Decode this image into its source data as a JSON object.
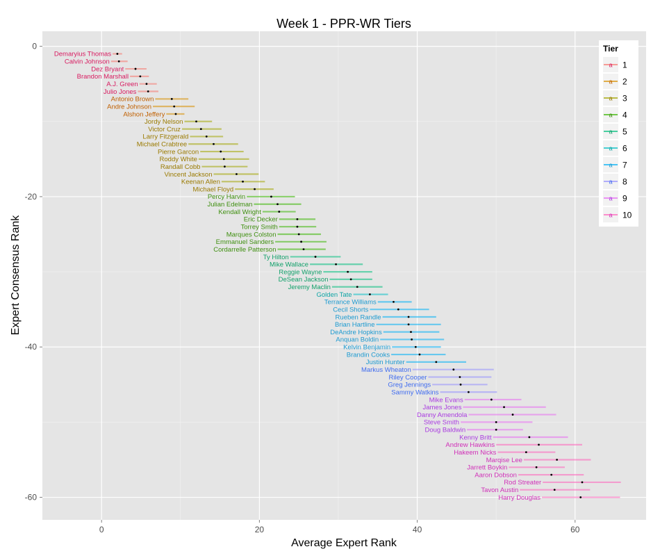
{
  "chart_data": {
    "type": "scatter",
    "title": "Week 1 - PPR-WR Tiers",
    "xlabel": "Average Expert Rank",
    "ylabel": "Expert Consensus Rank",
    "xlim": [
      -7.5,
      69
    ],
    "ylim": [
      -63,
      2
    ],
    "x_ticks": [
      0,
      20,
      40,
      60
    ],
    "x_tick_labels": [
      "0",
      "20",
      "40",
      "60"
    ],
    "y_ticks": [
      0,
      -20,
      -40,
      -60
    ],
    "y_tick_labels": [
      "0",
      "-20",
      "-40",
      "-60"
    ],
    "grid": true,
    "legend": {
      "title": "Tier",
      "position": "top-right",
      "key_glyph": "a",
      "entries": [
        "1",
        "2",
        "3",
        "4",
        "5",
        "6",
        "7",
        "8",
        "9",
        "10"
      ]
    },
    "tier_colors": [
      "#F8766D",
      "#D89000",
      "#A3A500",
      "#39B600",
      "#00BF7D",
      "#00BFC4",
      "#00B0F6",
      "#9590FF",
      "#E76BF3",
      "#FF62BC"
    ],
    "label_colors": [
      "#D81B60",
      "#C06000",
      "#9A7A00",
      "#3F8F10",
      "#11A06A",
      "#0FA5A5",
      "#1D9AD0",
      "#3F6BEF",
      "#A93BE0",
      "#D030B8"
    ],
    "points": [
      {
        "name": "Demaryius Thomas",
        "rank": -1,
        "tier": 1,
        "avg": 2.0,
        "lo": 1.4,
        "hi": 2.6
      },
      {
        "name": "Calvin Johnson",
        "rank": -2,
        "tier": 1,
        "avg": 2.2,
        "lo": 1.2,
        "hi": 3.3
      },
      {
        "name": "Dez Bryant",
        "rank": -3,
        "tier": 1,
        "avg": 4.3,
        "lo": 3.0,
        "hi": 5.7
      },
      {
        "name": "Brandon Marshall",
        "rank": -4,
        "tier": 1,
        "avg": 4.9,
        "lo": 3.6,
        "hi": 6.0
      },
      {
        "name": "A.J. Green",
        "rank": -5,
        "tier": 1,
        "avg": 5.7,
        "lo": 4.8,
        "hi": 7.0
      },
      {
        "name": "Julio Jones",
        "rank": -6,
        "tier": 1,
        "avg": 5.9,
        "lo": 4.6,
        "hi": 7.2
      },
      {
        "name": "Antonio Brown",
        "rank": -7,
        "tier": 2,
        "avg": 8.9,
        "lo": 6.8,
        "hi": 11.0
      },
      {
        "name": "Andre Johnson",
        "rank": -8,
        "tier": 2,
        "avg": 9.2,
        "lo": 6.5,
        "hi": 11.8
      },
      {
        "name": "Alshon Jeffery",
        "rank": -9,
        "tier": 2,
        "avg": 9.4,
        "lo": 8.2,
        "hi": 10.5
      },
      {
        "name": "Jordy Nelson",
        "rank": -10,
        "tier": 3,
        "avg": 12.0,
        "lo": 10.5,
        "hi": 14.0
      },
      {
        "name": "Victor Cruz",
        "rank": -11,
        "tier": 3,
        "avg": 12.6,
        "lo": 10.2,
        "hi": 15.2
      },
      {
        "name": "Larry Fitzgerald",
        "rank": -12,
        "tier": 3,
        "avg": 13.3,
        "lo": 11.2,
        "hi": 15.4
      },
      {
        "name": "Michael Crabtree",
        "rank": -13,
        "tier": 3,
        "avg": 14.2,
        "lo": 11.0,
        "hi": 17.3
      },
      {
        "name": "Pierre Garcon",
        "rank": -14,
        "tier": 3,
        "avg": 15.1,
        "lo": 12.5,
        "hi": 18.0
      },
      {
        "name": "Roddy White",
        "rank": -15,
        "tier": 3,
        "avg": 15.5,
        "lo": 12.3,
        "hi": 18.7
      },
      {
        "name": "Randall Cobb",
        "rank": -16,
        "tier": 3,
        "avg": 15.6,
        "lo": 12.7,
        "hi": 18.5
      },
      {
        "name": "Vincent Jackson",
        "rank": -17,
        "tier": 3,
        "avg": 17.1,
        "lo": 14.2,
        "hi": 19.9
      },
      {
        "name": "Keenan Allen",
        "rank": -18,
        "tier": 3,
        "avg": 17.9,
        "lo": 15.2,
        "hi": 20.7
      },
      {
        "name": "Michael Floyd",
        "rank": -19,
        "tier": 3,
        "avg": 19.4,
        "lo": 16.9,
        "hi": 21.8
      },
      {
        "name": "Percy Harvin",
        "rank": -20,
        "tier": 4,
        "avg": 21.5,
        "lo": 18.4,
        "hi": 24.5
      },
      {
        "name": "Julian Edelman",
        "rank": -21,
        "tier": 4,
        "avg": 22.3,
        "lo": 19.3,
        "hi": 25.3
      },
      {
        "name": "Kendall Wright",
        "rank": -22,
        "tier": 4,
        "avg": 22.5,
        "lo": 20.4,
        "hi": 24.6
      },
      {
        "name": "Eric Decker",
        "rank": -23,
        "tier": 4,
        "avg": 24.8,
        "lo": 22.5,
        "hi": 27.1
      },
      {
        "name": "Torrey Smith",
        "rank": -24,
        "tier": 4,
        "avg": 24.8,
        "lo": 22.5,
        "hi": 27.2
      },
      {
        "name": "Marques Colston",
        "rank": -25,
        "tier": 4,
        "avg": 25.0,
        "lo": 22.3,
        "hi": 27.8
      },
      {
        "name": "Emmanuel Sanders",
        "rank": -26,
        "tier": 4,
        "avg": 25.3,
        "lo": 22.0,
        "hi": 28.5
      },
      {
        "name": "Cordarrelle Patterson",
        "rank": -27,
        "tier": 4,
        "avg": 25.6,
        "lo": 22.3,
        "hi": 28.4
      },
      {
        "name": "Ty Hilton",
        "rank": -28,
        "tier": 5,
        "avg": 27.1,
        "lo": 23.9,
        "hi": 30.3
      },
      {
        "name": "Mike Wallace",
        "rank": -29,
        "tier": 5,
        "avg": 29.7,
        "lo": 26.4,
        "hi": 33.1
      },
      {
        "name": "Reggie Wayne",
        "rank": -30,
        "tier": 5,
        "avg": 31.2,
        "lo": 28.1,
        "hi": 34.3
      },
      {
        "name": "DeSean Jackson",
        "rank": -31,
        "tier": 5,
        "avg": 31.6,
        "lo": 28.9,
        "hi": 34.3
      },
      {
        "name": "Jeremy Maclin",
        "rank": -32,
        "tier": 5,
        "avg": 32.4,
        "lo": 29.2,
        "hi": 35.6
      },
      {
        "name": "Golden Tate",
        "rank": -33,
        "tier": 6,
        "avg": 34.0,
        "lo": 31.9,
        "hi": 36.3
      },
      {
        "name": "Terrance Williams",
        "rank": -34,
        "tier": 7,
        "avg": 37.0,
        "lo": 35.0,
        "hi": 39.3
      },
      {
        "name": "Cecil Shorts",
        "rank": -35,
        "tier": 7,
        "avg": 37.6,
        "lo": 34.0,
        "hi": 41.5
      },
      {
        "name": "Rueben Randle",
        "rank": -36,
        "tier": 7,
        "avg": 38.9,
        "lo": 35.6,
        "hi": 42.4
      },
      {
        "name": "Brian Hartline",
        "rank": -37,
        "tier": 7,
        "avg": 38.9,
        "lo": 34.8,
        "hi": 43.0
      },
      {
        "name": "DeAndre Hopkins",
        "rank": -38,
        "tier": 7,
        "avg": 39.2,
        "lo": 35.7,
        "hi": 42.8
      },
      {
        "name": "Anquan Boldin",
        "rank": -39,
        "tier": 7,
        "avg": 39.3,
        "lo": 35.3,
        "hi": 43.4
      },
      {
        "name": "Kelvin Benjamin",
        "rank": -40,
        "tier": 7,
        "avg": 39.8,
        "lo": 36.8,
        "hi": 43.0
      },
      {
        "name": "Brandin Cooks",
        "rank": -41,
        "tier": 7,
        "avg": 40.3,
        "lo": 36.7,
        "hi": 43.6
      },
      {
        "name": "Justin Hunter",
        "rank": -42,
        "tier": 7,
        "avg": 42.4,
        "lo": 38.6,
        "hi": 46.2
      },
      {
        "name": "Markus Wheaton",
        "rank": -43,
        "tier": 8,
        "avg": 44.6,
        "lo": 39.4,
        "hi": 49.7
      },
      {
        "name": "Riley Cooper",
        "rank": -44,
        "tier": 8,
        "avg": 45.4,
        "lo": 41.4,
        "hi": 49.4
      },
      {
        "name": "Greg Jennings",
        "rank": -45,
        "tier": 8,
        "avg": 45.5,
        "lo": 41.9,
        "hi": 48.9
      },
      {
        "name": "Sammy Watkins",
        "rank": -46,
        "tier": 8,
        "avg": 46.5,
        "lo": 42.9,
        "hi": 50.1
      },
      {
        "name": "Mike Evans",
        "rank": -47,
        "tier": 9,
        "avg": 49.4,
        "lo": 46.0,
        "hi": 53.2
      },
      {
        "name": "James Jones",
        "rank": -48,
        "tier": 9,
        "avg": 51.0,
        "lo": 45.8,
        "hi": 56.3
      },
      {
        "name": "Danny Amendola",
        "rank": -49,
        "tier": 9,
        "avg": 52.1,
        "lo": 46.5,
        "hi": 57.6
      },
      {
        "name": "Steve Smith",
        "rank": -50,
        "tier": 9,
        "avg": 50.0,
        "lo": 45.5,
        "hi": 54.6
      },
      {
        "name": "Doug Baldwin",
        "rank": -51,
        "tier": 9,
        "avg": 50.0,
        "lo": 46.3,
        "hi": 53.4
      },
      {
        "name": "Kenny Britt",
        "rank": -52,
        "tier": 9,
        "avg": 54.2,
        "lo": 49.6,
        "hi": 59.1
      },
      {
        "name": "Andrew Hawkins",
        "rank": -53,
        "tier": 10,
        "avg": 55.4,
        "lo": 50.0,
        "hi": 60.9
      },
      {
        "name": "Hakeem Nicks",
        "rank": -54,
        "tier": 10,
        "avg": 53.8,
        "lo": 50.2,
        "hi": 57.5
      },
      {
        "name": "Marqise Lee",
        "rank": -55,
        "tier": 10,
        "avg": 57.7,
        "lo": 53.5,
        "hi": 62.0
      },
      {
        "name": "Jarrett Boykin",
        "rank": -56,
        "tier": 10,
        "avg": 55.1,
        "lo": 51.6,
        "hi": 58.7
      },
      {
        "name": "Aaron Dobson",
        "rank": -57,
        "tier": 10,
        "avg": 57.0,
        "lo": 52.8,
        "hi": 61.1
      },
      {
        "name": "Rod Streater",
        "rank": -58,
        "tier": 10,
        "avg": 60.9,
        "lo": 55.9,
        "hi": 65.8
      },
      {
        "name": "Tavon Austin",
        "rank": -59,
        "tier": 10,
        "avg": 57.4,
        "lo": 53.0,
        "hi": 61.9
      },
      {
        "name": "Harry Douglas",
        "rank": -60,
        "tier": 10,
        "avg": 60.7,
        "lo": 55.8,
        "hi": 65.7
      }
    ]
  }
}
